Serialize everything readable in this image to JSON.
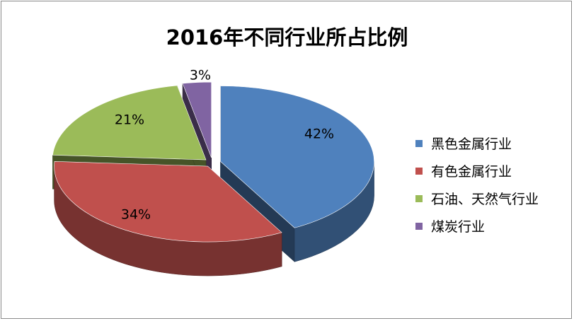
{
  "chart_data": {
    "type": "pie",
    "title": "2016年不同行业所占比例",
    "categories": [
      "黑色金属行业",
      "有色金属行业",
      "石油、天然气行业",
      "煤炭行业"
    ],
    "values": [
      42,
      34,
      21,
      3
    ],
    "labels": [
      "42%",
      "34%",
      "21%",
      "3%"
    ],
    "colors": [
      "#4F81BD",
      "#C0504D",
      "#9BBB59",
      "#8064A2"
    ],
    "legend_position": "right",
    "style": "3d-exploded"
  }
}
